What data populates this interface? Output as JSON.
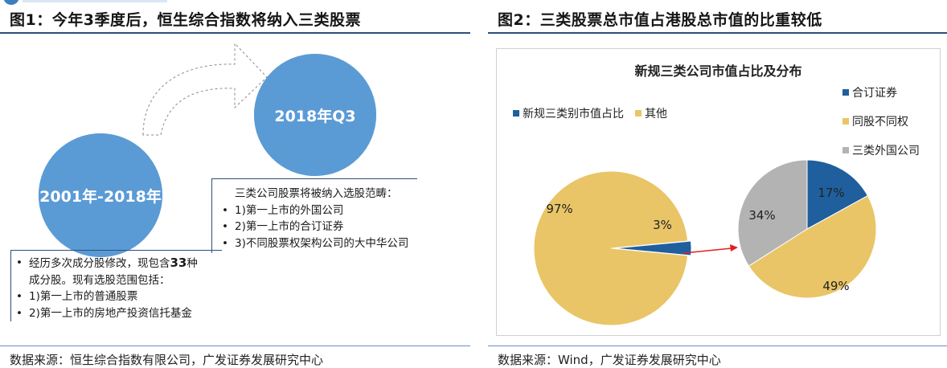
{
  "left": {
    "title": "图1：今年3季度后，恒生综合指数将纳入三类股票",
    "circle_start": "2001年-2018年",
    "circle_end": "2018年Q3",
    "block_2018": {
      "intro": "三类公司股票将被纳入选股范畴：",
      "items": [
        "1)第一上市的外国公司",
        "2)第一上市的合订证券",
        "3)不同股票权架构公司的大中华公司"
      ]
    },
    "block_2001": {
      "line1_pre": "经历多次成分股修改，现包含",
      "line1_num": "33",
      "line1_post": "种",
      "line2": "成分股。现有选股范围包括：",
      "items": [
        "1)第一上市的普通股票",
        "2)第一上市的房地产投资信托基金"
      ]
    },
    "source": "数据来源：恒生综合指数有限公司，广发证券发展研究中心"
  },
  "right": {
    "title": "图2：三类股票总市值占港股总市值的比重较低",
    "source": "数据来源：Wind，广发证券发展研究中心",
    "colors": {
      "blue": "#1f5f9e",
      "yellow": "#e9c567",
      "gray": "#b3b3b3",
      "arrow": "#e02020"
    },
    "chart_data": [
      {
        "type": "pie",
        "title": "新规三类公司市值占比及分布",
        "legend_position": "top-left",
        "labels": [
          "新规三类别市值占比",
          "其他"
        ],
        "values": [
          3,
          97
        ],
        "value_labels": [
          "3%",
          "97%"
        ]
      },
      {
        "type": "pie",
        "title": "",
        "legend_position": "top-right",
        "labels": [
          "合订证券",
          "同股不同权",
          "三类外国公司"
        ],
        "values": [
          17,
          49,
          34
        ],
        "value_labels": [
          "17%",
          "49%",
          "34%"
        ]
      }
    ]
  }
}
